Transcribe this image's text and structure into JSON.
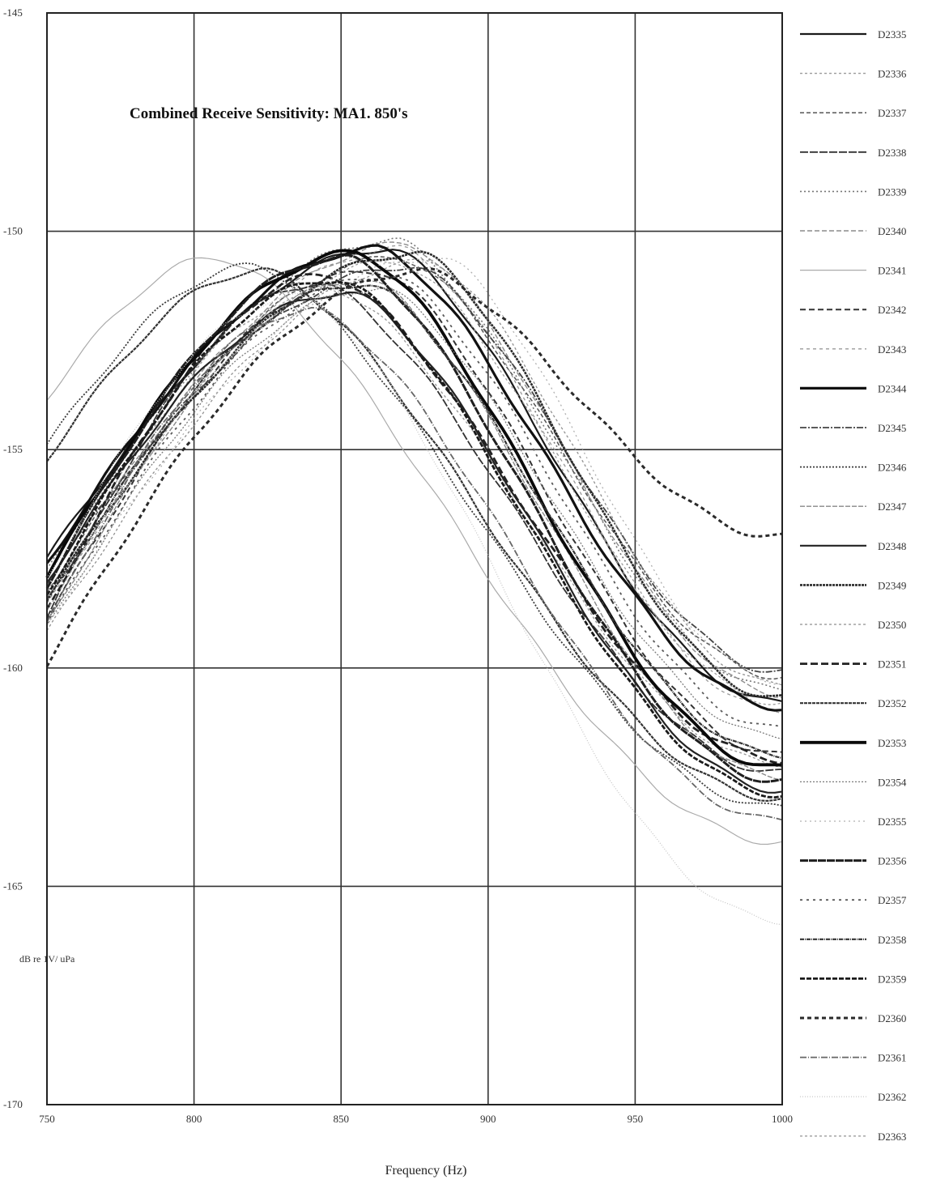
{
  "chart_data": {
    "type": "line",
    "title": "Combined Receive Sensitivity: MA1. 850's",
    "xlabel": "Frequency (Hz)",
    "ylabel": "dB re 1V/ uPa",
    "xlim": [
      750,
      1000
    ],
    "ylim": [
      -170,
      -145
    ],
    "x_ticks": [
      "750",
      "800",
      "850",
      "900",
      "950",
      "1000"
    ],
    "y_ticks": [
      "-145",
      "-150",
      "-155",
      "-160",
      "-165",
      "-170"
    ],
    "grid": true,
    "legend_position": "right",
    "series": [
      {
        "name": "D2335",
        "color": "#1a1a1a",
        "dash": "",
        "width": 2.2,
        "peak_x": 866,
        "peak_y": -150.4,
        "left_y": -157.5,
        "right_y": -160.8
      },
      {
        "name": "D2336",
        "color": "#9a9a9a",
        "dash": "3,3",
        "width": 1.4,
        "peak_x": 846,
        "peak_y": -151.3,
        "left_y": -158.5,
        "right_y": -162.2
      },
      {
        "name": "D2337",
        "color": "#555555",
        "dash": "5,3",
        "width": 1.5,
        "peak_x": 870,
        "peak_y": -150.6,
        "left_y": -158.2,
        "right_y": -160.2
      },
      {
        "name": "D2338",
        "color": "#333333",
        "dash": "10,2",
        "width": 1.8,
        "peak_x": 842,
        "peak_y": -151.2,
        "left_y": -158.8,
        "right_y": -162.4
      },
      {
        "name": "D2339",
        "color": "#777777",
        "dash": "2,3",
        "width": 1.6,
        "peak_x": 868,
        "peak_y": -150.2,
        "left_y": -157.8,
        "right_y": -160.5
      },
      {
        "name": "D2340",
        "color": "#8c8c8c",
        "dash": "6,3",
        "width": 1.4,
        "peak_x": 872,
        "peak_y": -150.3,
        "left_y": -158.3,
        "right_y": -160.6
      },
      {
        "name": "D2341",
        "color": "#aaaaaa",
        "dash": "",
        "width": 1.2,
        "peak_x": 808,
        "peak_y": -150.6,
        "left_y": -153.8,
        "right_y": -164.0
      },
      {
        "name": "D2342",
        "color": "#333333",
        "dash": "7,4",
        "width": 2.0,
        "peak_x": 862,
        "peak_y": -150.9,
        "left_y": -158.9,
        "right_y": -162.0
      },
      {
        "name": "D2343",
        "color": "#999999",
        "dash": "4,4",
        "width": 1.3,
        "peak_x": 870,
        "peak_y": -150.4,
        "left_y": -158.6,
        "right_y": -161.0
      },
      {
        "name": "D2344",
        "color": "#111111",
        "dash": "",
        "width": 3.2,
        "peak_x": 862,
        "peak_y": -150.4,
        "left_y": -157.6,
        "right_y": -160.9
      },
      {
        "name": "D2345",
        "color": "#444444",
        "dash": "8,2,2,2",
        "width": 1.8,
        "peak_x": 874,
        "peak_y": -150.8,
        "left_y": -158.0,
        "right_y": -160.1
      },
      {
        "name": "D2346",
        "color": "#3a3a3a",
        "dash": "2,2",
        "width": 1.8,
        "peak_x": 820,
        "peak_y": -150.8,
        "left_y": -154.9,
        "right_y": -163.2
      },
      {
        "name": "D2347",
        "color": "#888888",
        "dash": "6,2",
        "width": 1.4,
        "peak_x": 858,
        "peak_y": -151.1,
        "left_y": -159.0,
        "right_y": -162.5
      },
      {
        "name": "D2348",
        "color": "#222222",
        "dash": "",
        "width": 2.2,
        "peak_x": 852,
        "peak_y": -151.4,
        "left_y": -158.0,
        "right_y": -162.8
      },
      {
        "name": "D2349",
        "color": "#2a2a2a",
        "dash": "3,1",
        "width": 2.6,
        "peak_x": 876,
        "peak_y": -150.5,
        "left_y": -158.4,
        "right_y": -160.7
      },
      {
        "name": "D2350",
        "color": "#8f8f8f",
        "dash": "3,3",
        "width": 1.3,
        "peak_x": 880,
        "peak_y": -150.7,
        "left_y": -159.2,
        "right_y": -160.4
      },
      {
        "name": "D2351",
        "color": "#222222",
        "dash": "9,4",
        "width": 2.8,
        "peak_x": 845,
        "peak_y": -151.0,
        "left_y": -158.7,
        "right_y": -162.1
      },
      {
        "name": "D2352",
        "color": "#333333",
        "dash": "4,1",
        "width": 2.2,
        "peak_x": 823,
        "peak_y": -150.9,
        "left_y": -155.2,
        "right_y": -163.0
      },
      {
        "name": "D2353",
        "color": "#0a0a0a",
        "dash": "",
        "width": 3.8,
        "peak_x": 855,
        "peak_y": -150.5,
        "left_y": -157.9,
        "right_y": -162.3
      },
      {
        "name": "D2354",
        "color": "#7a7a7a",
        "dash": "2,2",
        "width": 1.3,
        "peak_x": 863,
        "peak_y": -151.3,
        "left_y": -159.1,
        "right_y": -161.6
      },
      {
        "name": "D2355",
        "color": "#b0b0b0",
        "dash": "2,4",
        "width": 1.3,
        "peak_x": 884,
        "peak_y": -150.6,
        "left_y": -159.0,
        "right_y": -160.3
      },
      {
        "name": "D2356",
        "color": "#1e1e1e",
        "dash": "10,1",
        "width": 3.0,
        "peak_x": 851,
        "peak_y": -150.6,
        "left_y": -158.1,
        "right_y": -162.6
      },
      {
        "name": "D2357",
        "color": "#5a5a5a",
        "dash": "3,5",
        "width": 1.8,
        "peak_x": 866,
        "peak_y": -151.0,
        "left_y": -159.0,
        "right_y": -161.4
      },
      {
        "name": "D2358",
        "color": "#333333",
        "dash": "5,1,1,1",
        "width": 2.2,
        "peak_x": 858,
        "peak_y": -151.2,
        "left_y": -158.5,
        "right_y": -162.0
      },
      {
        "name": "D2359",
        "color": "#1a1a1a",
        "dash": "6,2",
        "width": 2.8,
        "peak_x": 848,
        "peak_y": -151.1,
        "left_y": -158.3,
        "right_y": -162.9
      },
      {
        "name": "D2360",
        "color": "#2a2a2a",
        "dash": "5,4",
        "width": 3.0,
        "peak_x": 878,
        "peak_y": -150.9,
        "left_y": -159.9,
        "right_y": -157.0
      },
      {
        "name": "D2361",
        "color": "#666666",
        "dash": "8,2,1,2",
        "width": 1.8,
        "peak_x": 840,
        "peak_y": -151.8,
        "left_y": -159.0,
        "right_y": -163.5
      },
      {
        "name": "D2362",
        "color": "#c4c4c4",
        "dash": "1,2",
        "width": 1.2,
        "peak_x": 835,
        "peak_y": -151.5,
        "left_y": -158.0,
        "right_y": -165.8
      },
      {
        "name": "D2363",
        "color": "#9c9c9c",
        "dash": "3,3",
        "width": 1.3,
        "peak_x": 869,
        "peak_y": -150.7,
        "left_y": -158.6,
        "right_y": -160.8
      }
    ]
  }
}
